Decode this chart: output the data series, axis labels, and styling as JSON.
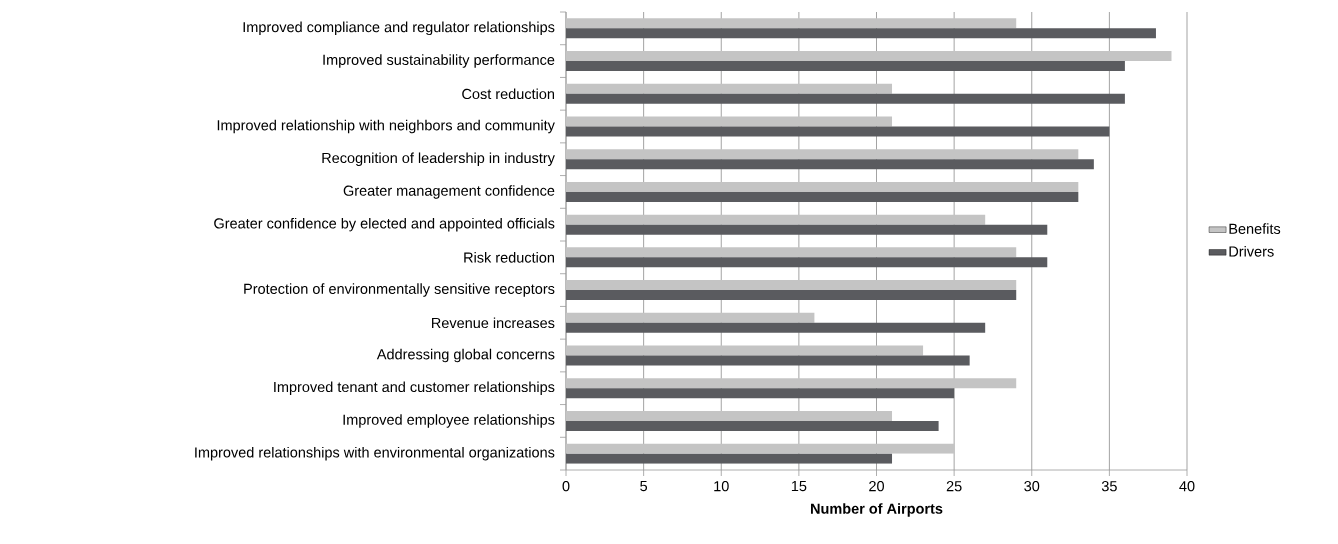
{
  "chart_data": {
    "type": "bar",
    "orientation": "horizontal",
    "xlabel": "Number of Airports",
    "categories": [
      "Improved compliance and regulator relationships",
      "Improved sustainability performance",
      "Cost reduction",
      "Improved relationship with neighbors and community",
      "Recognition of leadership in industry",
      "Greater management confidence",
      "Greater confidence by elected and appointed officials",
      "Risk reduction",
      "Protection of environmentally sensitive receptors",
      "Revenue increases",
      "Addressing global concerns",
      "Improved tenant and customer relationships",
      "Improved employee relationships",
      "Improved relationships with environmental organizations"
    ],
    "series": [
      {
        "name": "Benefits",
        "color": "#c4c4c4",
        "values": [
          29,
          39,
          21,
          21,
          33,
          33,
          27,
          29,
          29,
          16,
          23,
          29,
          21,
          25
        ]
      },
      {
        "name": "Drivers",
        "color": "#5a5b5f",
        "values": [
          38,
          36,
          36,
          35,
          34,
          33,
          31,
          31,
          29,
          27,
          26,
          25,
          24,
          21
        ]
      }
    ],
    "xlim": [
      0,
      40
    ],
    "xticks": [
      0,
      5,
      10,
      15,
      20,
      25,
      30,
      35,
      40
    ],
    "grid": "x",
    "legend": "right"
  }
}
